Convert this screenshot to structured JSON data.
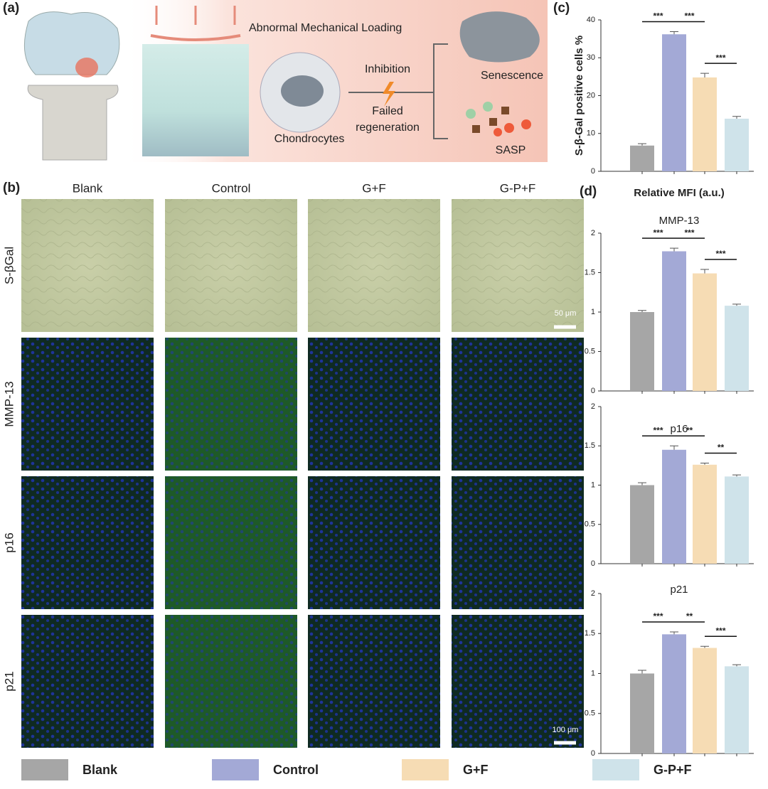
{
  "panel_labels": [
    "(a)",
    "(b)",
    "(c)",
    "(d)"
  ],
  "schematic": {
    "loading": "Abnormal Mechanical Loading",
    "cell": "Chondrocytes",
    "inhibition": "Inhibition",
    "failed": [
      "Failed",
      "regeneration"
    ],
    "senescence": "Senescence",
    "sasp": "SASP"
  },
  "micrographs": {
    "columns": [
      "Blank",
      "Control",
      "G+F",
      "G-P+F"
    ],
    "rows": [
      "S-βGal",
      "MMP-13",
      "p16",
      "p21"
    ],
    "scale_bars": [
      "50 μm",
      "100 μm"
    ]
  },
  "d_title": "Relative MFI (a.u.)",
  "legend": [
    {
      "name": "Blank",
      "color": "#a6a6a6"
    },
    {
      "name": "Control",
      "color": "#a3a9d6"
    },
    {
      "name": "G+F",
      "color": "#f6dcb4"
    },
    {
      "name": "G-P+F",
      "color": "#cfe3ea"
    }
  ],
  "chart_data": [
    {
      "type": "bar",
      "ylabel": "S-β-Gal positive cells %",
      "categories": [
        null,
        null,
        null,
        null
      ],
      "values": [
        6.8,
        36.2,
        24.8,
        13.9
      ],
      "errors": [
        0.5,
        0.7,
        1.1,
        0.6
      ],
      "ylim": [
        0,
        40
      ],
      "yticks": [
        0,
        10,
        20,
        30,
        40
      ],
      "comparisons": [
        {
          "pair": [
            0,
            1
          ],
          "label": "***"
        },
        {
          "pair": [
            1,
            2
          ],
          "label": "***"
        },
        {
          "pair": [
            2,
            3
          ],
          "label": "***"
        }
      ]
    },
    {
      "type": "bar",
      "title": "MMP-13",
      "categories": [
        null,
        null,
        null,
        null
      ],
      "values": [
        1.0,
        1.77,
        1.49,
        1.08
      ],
      "errors": [
        0.02,
        0.04,
        0.05,
        0.02
      ],
      "ylim": [
        0,
        2
      ],
      "yticks": [
        0,
        0.5,
        1,
        1.5,
        2
      ],
      "comparisons": [
        {
          "pair": [
            0,
            1
          ],
          "label": "***"
        },
        {
          "pair": [
            1,
            2
          ],
          "label": "***"
        },
        {
          "pair": [
            2,
            3
          ],
          "label": "***"
        }
      ]
    },
    {
      "type": "bar",
      "title": "p16",
      "categories": [
        null,
        null,
        null,
        null
      ],
      "values": [
        1.0,
        1.45,
        1.26,
        1.11
      ],
      "errors": [
        0.03,
        0.05,
        0.02,
        0.02
      ],
      "ylim": [
        0,
        2
      ],
      "yticks": [
        0,
        0.5,
        1,
        1.5,
        2
      ],
      "comparisons": [
        {
          "pair": [
            0,
            1
          ],
          "label": "***"
        },
        {
          "pair": [
            1,
            2
          ],
          "label": "**"
        },
        {
          "pair": [
            2,
            3
          ],
          "label": "**"
        }
      ]
    },
    {
      "type": "bar",
      "title": "p21",
      "categories": [
        null,
        null,
        null,
        null
      ],
      "values": [
        1.0,
        1.49,
        1.32,
        1.09
      ],
      "errors": [
        0.04,
        0.03,
        0.02,
        0.02
      ],
      "ylim": [
        0,
        2
      ],
      "yticks": [
        0,
        0.5,
        1,
        1.5,
        2
      ],
      "comparisons": [
        {
          "pair": [
            0,
            1
          ],
          "label": "***"
        },
        {
          "pair": [
            1,
            2
          ],
          "label": "**"
        },
        {
          "pair": [
            2,
            3
          ],
          "label": "***"
        }
      ]
    }
  ]
}
